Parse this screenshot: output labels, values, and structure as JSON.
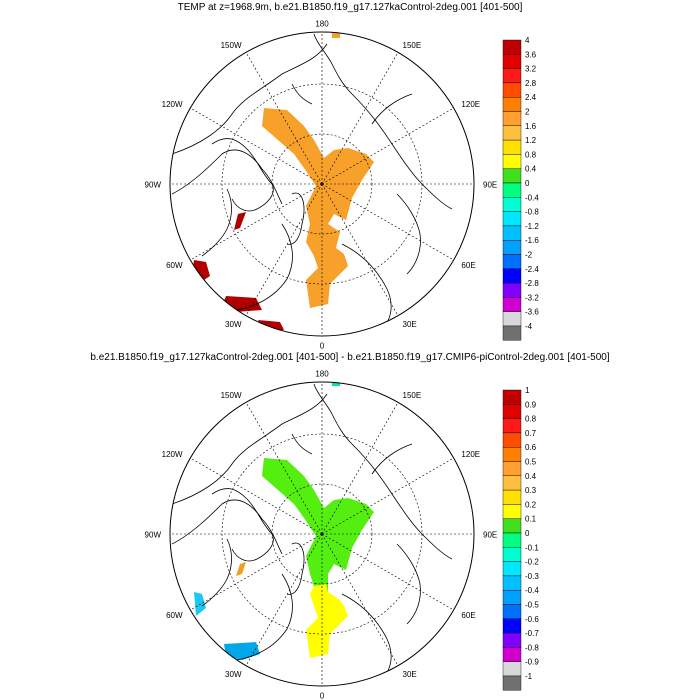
{
  "panels": [
    {
      "title": "TEMP at z=1968.9m, b.e21.B1850.f19_g17.127kaControl-2deg.001 [401-500]",
      "lon_labels": [
        "180",
        "150E",
        "120E",
        "90E",
        "60E",
        "30E",
        "0",
        "30W",
        "60W",
        "90W",
        "120W",
        "150W"
      ],
      "colorbar": {
        "labels": [
          "4",
          "3.6",
          "3.2",
          "2.8",
          "2.4",
          "2",
          "1.6",
          "1.2",
          "0.8",
          "0.4",
          "0",
          "-0.4",
          "-0.8",
          "-1.2",
          "-1.6",
          "-2",
          "-2.4",
          "-2.8",
          "-3.2",
          "-3.6",
          "-4"
        ],
        "colors": [
          "#c00000",
          "#e00000",
          "#ff1a1a",
          "#ff4d00",
          "#ff8000",
          "#ffa030",
          "#ffc040",
          "#ffe000",
          "#ffff00",
          "#40e020",
          "#00ff80",
          "#00ffd0",
          "#00e8ff",
          "#00c0ff",
          "#00a0ff",
          "#0070ff",
          "#0000ff",
          "#8000ff",
          "#d000d0",
          "#d8d8d8",
          "#707070"
        ]
      }
    },
    {
      "title": "b.e21.B1850.f19_g17.127kaControl-2deg.001 [401-500] - b.e21.B1850.f19_g17.CMIP6-piControl-2deg.001 [401-500]",
      "lon_labels": [
        "180",
        "150E",
        "120E",
        "90E",
        "60E",
        "30E",
        "0",
        "30W",
        "60W",
        "90W",
        "120W",
        "150W"
      ],
      "colorbar": {
        "labels": [
          "1",
          "0.9",
          "0.8",
          "0.7",
          "0.6",
          "0.5",
          "0.4",
          "0.3",
          "0.2",
          "0.1",
          "0",
          "-0.1",
          "-0.2",
          "-0.3",
          "-0.4",
          "-0.5",
          "-0.6",
          "-0.7",
          "-0.8",
          "-0.9",
          "-1"
        ],
        "colors": [
          "#c00000",
          "#e00000",
          "#ff1a1a",
          "#ff4d00",
          "#ff8000",
          "#ffa030",
          "#ffc040",
          "#ffe000",
          "#ffff00",
          "#40e020",
          "#00ff80",
          "#00ffd0",
          "#00e8ff",
          "#00c0ff",
          "#00a0ff",
          "#0070ff",
          "#0000ff",
          "#8000ff",
          "#d000d0",
          "#d8d8d8",
          "#707070"
        ]
      }
    }
  ],
  "map": {
    "projection": "north polar stereographic",
    "graticule_style": "dashed",
    "upper_field_color": "#f7a02a",
    "upper_hot_color": "#b00000",
    "lower_upper_shelf_color": "#55ee11",
    "lower_lower_shelf_color": "#ffff00",
    "lower_blue_color": "#1ac8f0",
    "coast_color": "#000000"
  }
}
